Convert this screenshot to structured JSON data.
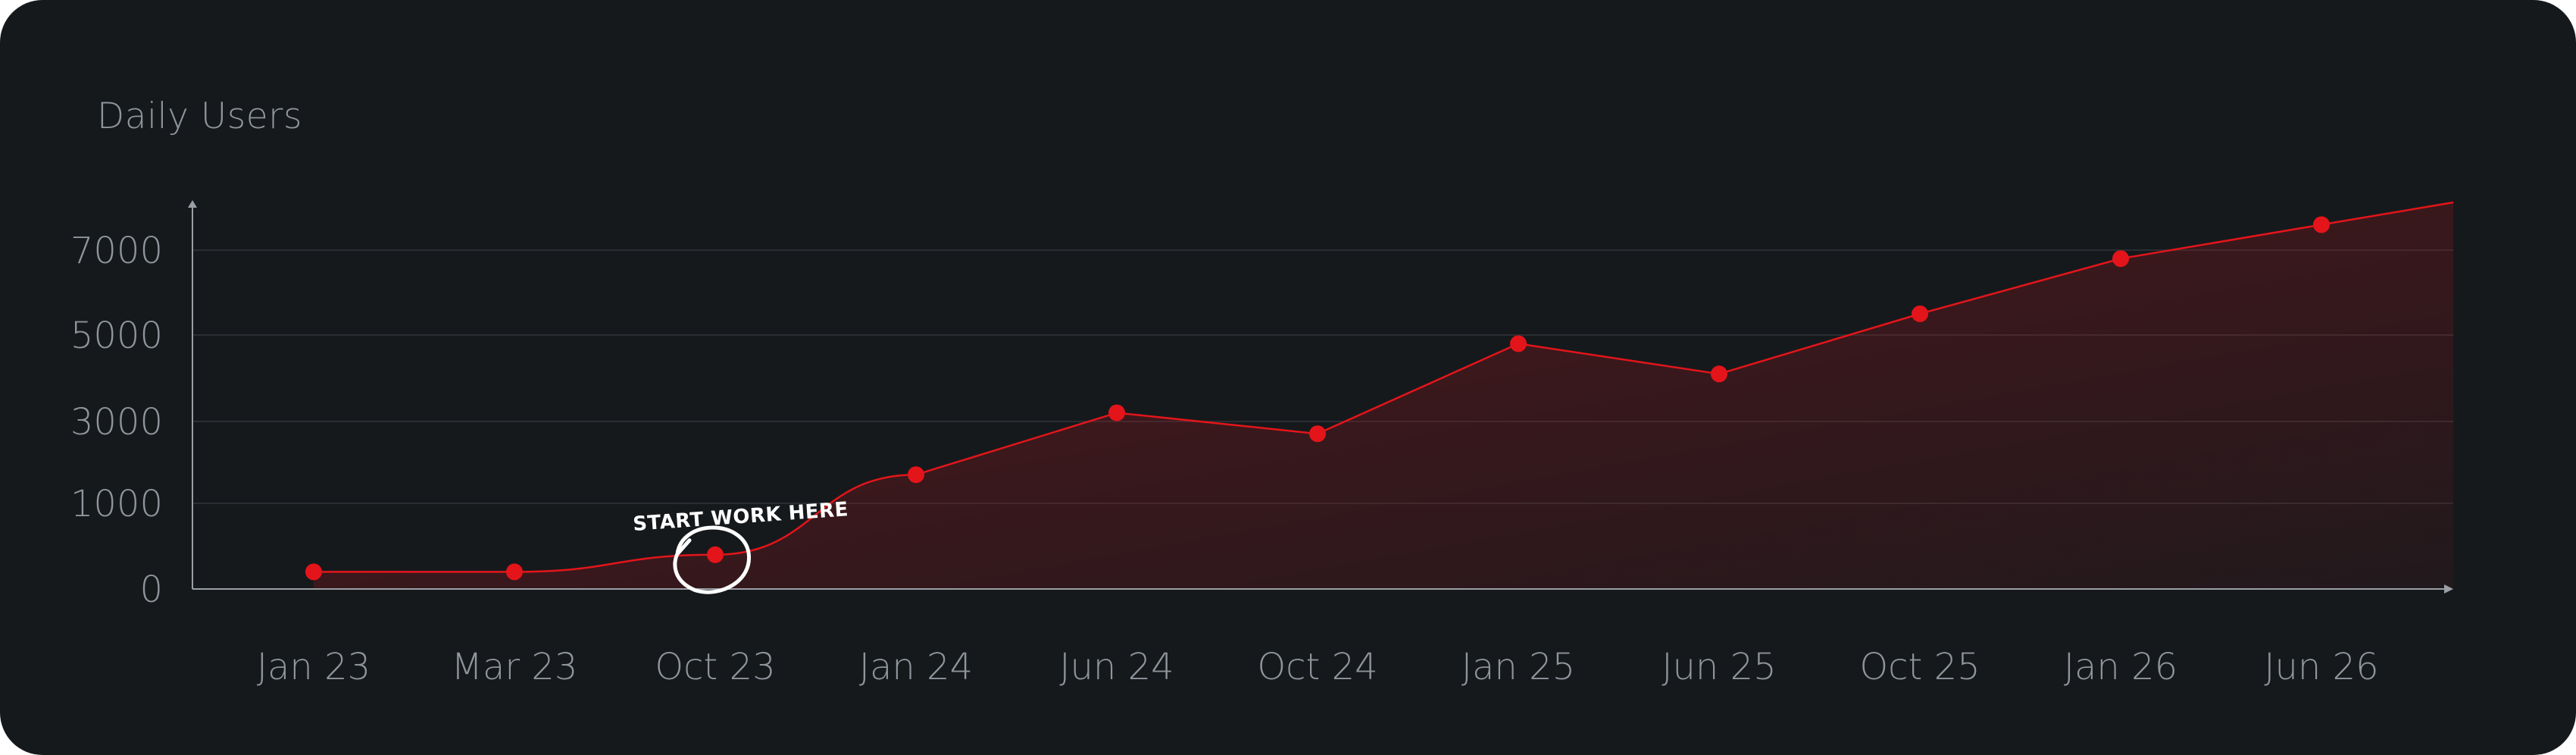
{
  "colors": {
    "background": "#16191c",
    "accent": "#e3151a",
    "text": "#8f959c",
    "grid": "#2a2e33"
  },
  "chart_data": {
    "type": "area",
    "title": "Daily Users",
    "xlabel": "",
    "ylabel": "",
    "ylim": [
      0,
      8000
    ],
    "grid": true,
    "categories": [
      "Jan 23",
      "Mar 23",
      "Oct 23",
      "Jan 24",
      "Jun 24",
      "Oct 24",
      "Jan 25",
      "Jun 25",
      "Oct 25",
      "Jan 26",
      "Jun 26"
    ],
    "yticks": [
      0,
      1000,
      3000,
      5000,
      7000
    ],
    "series": [
      {
        "values": [
          200,
          200,
          400,
          1700,
          3200,
          2700,
          4800,
          4100,
          5500,
          6800,
          7600
        ]
      }
    ],
    "annotations": [
      {
        "text": "START WORK HERE",
        "category": "Oct 23"
      }
    ]
  }
}
